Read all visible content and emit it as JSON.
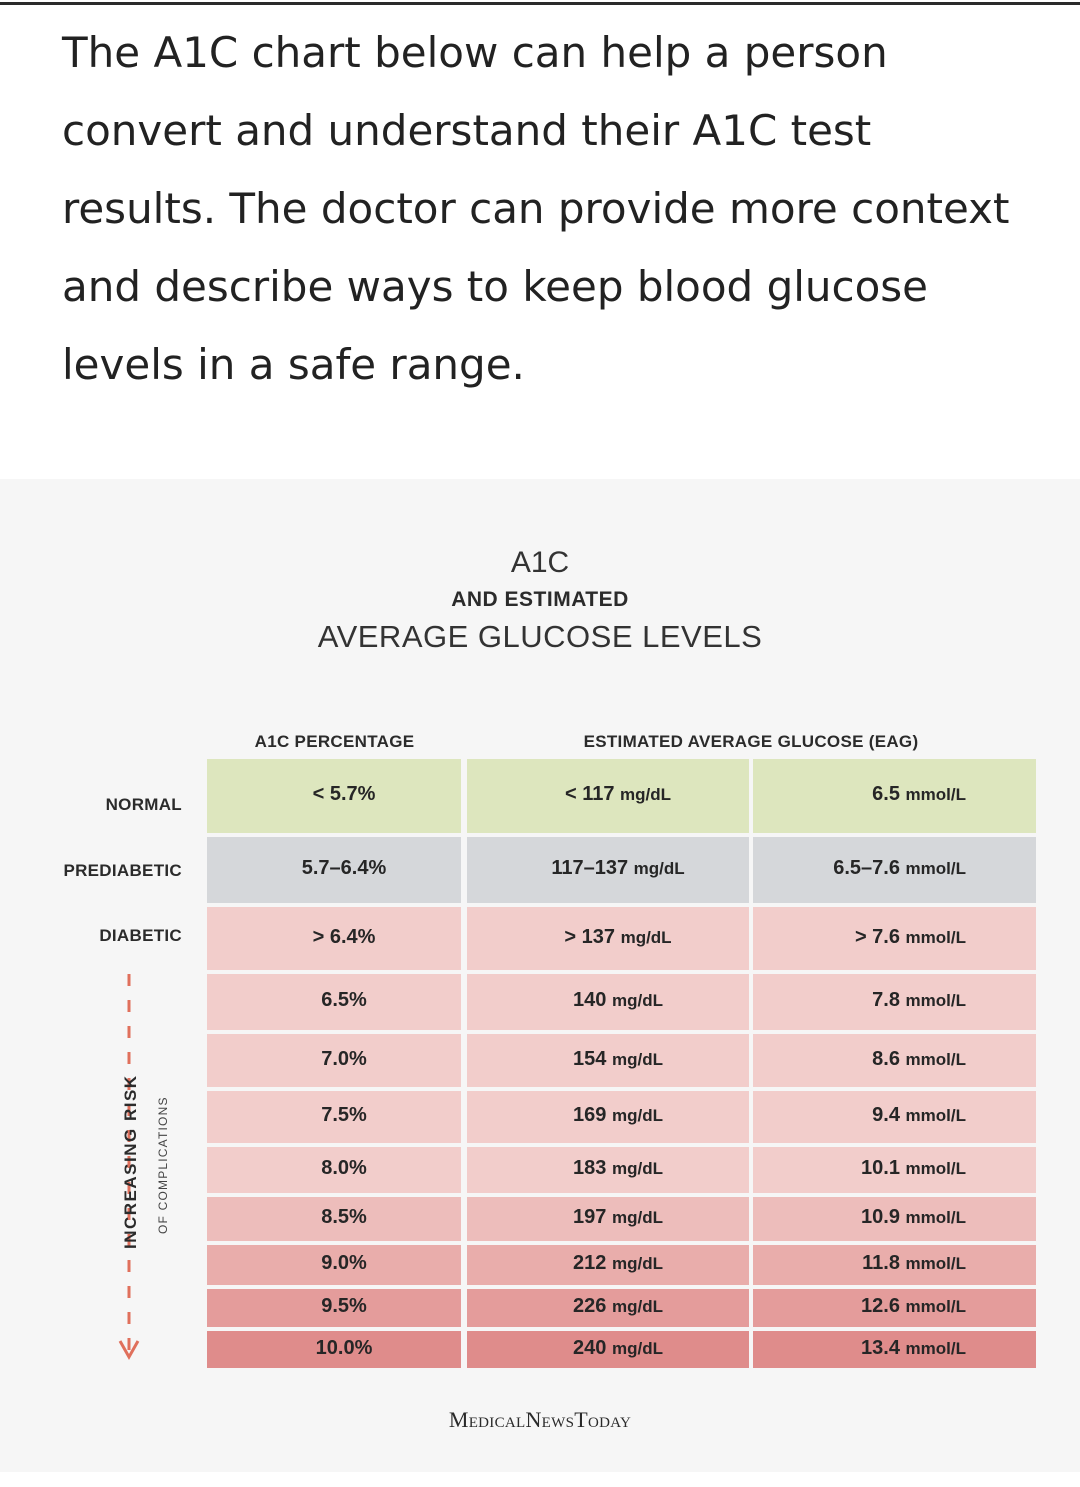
{
  "intro_text": "The A1C chart below can help a person convert and understand their A1C test results. The doctor can provide more context and describe ways to keep blood glucose levels in a safe range.",
  "chart": {
    "title_line1": "A1C",
    "title_line2": "AND ESTIMATED",
    "title_line3": "AVERAGE GLUCOSE LEVELS",
    "col_header_a1c": "A1C PERCENTAGE",
    "col_header_eag": "ESTIMATED AVERAGE GLUCOSE (EAG)",
    "category_labels": {
      "normal": "NORMAL",
      "prediabetic": "PREDIABETIC",
      "diabetic": "DIABETIC"
    },
    "risk_label": "INCREASING RISK",
    "risk_sublabel": "OF COMPLICATIONS",
    "brand": "MedicalNewsToday",
    "colors": {
      "normal": "#dde6be",
      "prediabetic": "#d5d7da",
      "diabetic_light": "#f2cdcb",
      "diabetic_dark": "#df8c8b",
      "arrow": "#e0705c"
    },
    "rows": [
      {
        "a1c": "< 5.7%",
        "mgdl": "< 117",
        "mmol": "6.5"
      },
      {
        "a1c": "5.7–6.4%",
        "mgdl": "117–137",
        "mmol": "6.5–7.6"
      },
      {
        "a1c": "> 6.4%",
        "mgdl": "> 137",
        "mmol": "> 7.6"
      },
      {
        "a1c": "6.5%",
        "mgdl": "140",
        "mmol": "7.8"
      },
      {
        "a1c": "7.0%",
        "mgdl": "154",
        "mmol": "8.6"
      },
      {
        "a1c": "7.5%",
        "mgdl": "169",
        "mmol": "9.4"
      },
      {
        "a1c": "8.0%",
        "mgdl": "183",
        "mmol": "10.1"
      },
      {
        "a1c": "8.5%",
        "mgdl": "197",
        "mmol": "10.9"
      },
      {
        "a1c": "9.0%",
        "mgdl": "212",
        "mmol": "11.8"
      },
      {
        "a1c": "9.5%",
        "mgdl": "226",
        "mmol": "12.6"
      },
      {
        "a1c": "10.0%",
        "mgdl": "240",
        "mmol": "13.4"
      }
    ],
    "unit_mgdl": "mg/dL",
    "unit_mmol": "mmol/L"
  }
}
